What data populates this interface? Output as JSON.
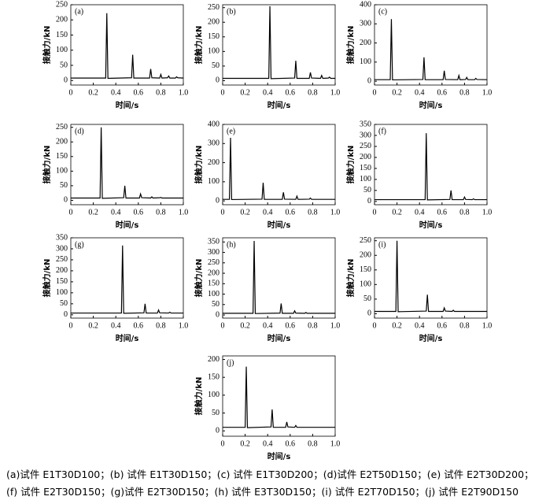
{
  "chart_data": [
    {
      "type": "line",
      "label": "(a)",
      "ylabel": "接触力/kN",
      "xlabel": "时间/s",
      "color": "#000000",
      "x": [
        0,
        0.31,
        0.32,
        0.33,
        0.54,
        0.55,
        0.56,
        0.7,
        0.71,
        0.72,
        0.79,
        0.8,
        0.81,
        0.86,
        0.87,
        0.88,
        0.93,
        0.94,
        0.95,
        1
      ],
      "values": [
        8,
        8,
        222,
        7,
        9,
        85,
        8,
        8,
        38,
        9,
        8,
        20,
        8,
        9,
        15,
        8,
        8,
        12,
        9,
        8
      ],
      "xlim": [
        0,
        1
      ],
      "ylim": [
        -15,
        250
      ],
      "xticks": [
        0,
        0.2,
        0.4,
        0.6,
        0.8,
        {
          "value": 1,
          "label": "1.0"
        }
      ],
      "yticks": [
        0,
        50,
        100,
        150,
        200,
        250
      ]
    },
    {
      "type": "line",
      "label": "(b)",
      "ylabel": "接触力/kN",
      "xlabel": "时间/s",
      "color": "#000000",
      "x": [
        0,
        0.41,
        0.42,
        0.43,
        0.64,
        0.65,
        0.66,
        0.77,
        0.78,
        0.79,
        0.87,
        0.88,
        0.89,
        0.94,
        0.95,
        0.96,
        1
      ],
      "values": [
        8,
        8,
        255,
        7,
        9,
        68,
        8,
        8,
        28,
        9,
        8,
        18,
        8,
        9,
        12,
        8,
        8
      ],
      "xlim": [
        0,
        1
      ],
      "ylim": [
        -15,
        260
      ],
      "xticks": [
        0,
        0.2,
        0.4,
        0.6,
        0.8,
        {
          "value": 1,
          "label": "1.0"
        }
      ],
      "yticks": [
        0,
        50,
        100,
        150,
        200,
        250
      ]
    },
    {
      "type": "line",
      "label": "(c)",
      "ylabel": "接触力/kN",
      "xlabel": "时间/s",
      "color": "#000000",
      "x": [
        0,
        0.14,
        0.15,
        0.16,
        0.43,
        0.44,
        0.45,
        0.61,
        0.62,
        0.63,
        0.74,
        0.75,
        0.76,
        0.81,
        0.82,
        0.83,
        0.89,
        0.9,
        0.91,
        1
      ],
      "values": [
        8,
        8,
        325,
        7,
        9,
        125,
        8,
        8,
        55,
        9,
        8,
        30,
        8,
        9,
        20,
        8,
        8,
        15,
        9,
        8
      ],
      "xlim": [
        0,
        1
      ],
      "ylim": [
        -20,
        400
      ],
      "xticks": [
        0,
        0.2,
        0.4,
        0.6,
        0.8,
        {
          "value": 1,
          "label": "1.0"
        }
      ],
      "yticks": [
        0,
        100,
        200,
        300,
        400
      ]
    },
    {
      "type": "line",
      "label": "(d)",
      "ylabel": "接触力/kN",
      "xlabel": "时间/s",
      "color": "#000000",
      "x": [
        0,
        0.26,
        0.27,
        0.28,
        0.47,
        0.48,
        0.49,
        0.61,
        0.62,
        0.63,
        0.71,
        0.72,
        0.73,
        0.79,
        0.8,
        0.81,
        1
      ],
      "values": [
        8,
        8,
        250,
        7,
        9,
        50,
        8,
        8,
        22,
        9,
        8,
        12,
        8,
        9,
        10,
        8,
        8
      ],
      "xlim": [
        0,
        1
      ],
      "ylim": [
        -15,
        260
      ],
      "xticks": [
        0,
        0.2,
        0.4,
        0.6,
        0.8,
        {
          "value": 1,
          "label": "1.0"
        }
      ],
      "yticks": [
        0,
        50,
        100,
        150,
        200,
        250
      ]
    },
    {
      "type": "line",
      "label": "(e)",
      "ylabel": "接触力/kN",
      "xlabel": "时间/s",
      "color": "#000000",
      "x": [
        0,
        0.06,
        0.07,
        0.08,
        0.35,
        0.36,
        0.37,
        0.53,
        0.54,
        0.55,
        0.65,
        0.66,
        0.67,
        0.77,
        0.78,
        0.79,
        1
      ],
      "values": [
        8,
        8,
        330,
        7,
        9,
        95,
        8,
        8,
        45,
        9,
        8,
        25,
        8,
        9,
        15,
        8,
        8
      ],
      "xlim": [
        0,
        1
      ],
      "ylim": [
        -20,
        400
      ],
      "xticks": [
        0,
        0.2,
        0.4,
        0.6,
        0.8,
        {
          "value": 1,
          "label": "1.0"
        }
      ],
      "yticks": [
        0,
        100,
        200,
        300,
        400
      ]
    },
    {
      "type": "line",
      "label": "(f)",
      "ylabel": "接触力/kN",
      "xlabel": "时间/s",
      "color": "#000000",
      "x": [
        0,
        0.45,
        0.46,
        0.47,
        0.67,
        0.68,
        0.69,
        0.79,
        0.8,
        0.81,
        0.87,
        0.88,
        0.89,
        1
      ],
      "values": [
        8,
        8,
        310,
        7,
        9,
        50,
        8,
        8,
        20,
        9,
        8,
        12,
        8,
        8
      ],
      "xlim": [
        0,
        1
      ],
      "ylim": [
        -15,
        350
      ],
      "xticks": [
        0,
        0.2,
        0.4,
        0.6,
        0.8,
        {
          "value": 1,
          "label": "1.0"
        }
      ],
      "yticks": [
        0,
        50,
        100,
        150,
        200,
        250,
        300,
        350
      ]
    },
    {
      "type": "line",
      "label": "(g)",
      "ylabel": "接触力/kN",
      "xlabel": "时间/s",
      "color": "#000000",
      "x": [
        0,
        0.45,
        0.46,
        0.47,
        0.65,
        0.66,
        0.67,
        0.77,
        0.78,
        0.79,
        0.87,
        0.88,
        0.89,
        1
      ],
      "values": [
        8,
        8,
        315,
        7,
        9,
        50,
        8,
        8,
        22,
        9,
        8,
        12,
        8,
        8
      ],
      "xlim": [
        0,
        1
      ],
      "ylim": [
        -15,
        350
      ],
      "xticks": [
        0,
        0.2,
        0.4,
        0.6,
        0.8,
        {
          "value": 1,
          "label": "1.0"
        }
      ],
      "yticks": [
        0,
        50,
        100,
        150,
        200,
        250,
        300,
        350
      ]
    },
    {
      "type": "line",
      "label": "(h)",
      "ylabel": "接触力/kN",
      "xlabel": "时间/s",
      "color": "#000000",
      "x": [
        0,
        0.27,
        0.28,
        0.29,
        0.51,
        0.52,
        0.53,
        0.63,
        0.64,
        0.65,
        0.73,
        0.74,
        0.75,
        1
      ],
      "values": [
        8,
        8,
        355,
        7,
        9,
        55,
        8,
        8,
        20,
        9,
        8,
        12,
        8,
        8
      ],
      "xlim": [
        0,
        1
      ],
      "ylim": [
        -15,
        370
      ],
      "xticks": [
        0,
        0.2,
        0.4,
        0.6,
        0.8,
        {
          "value": 1,
          "label": "1.0"
        }
      ],
      "yticks": [
        0,
        50,
        100,
        150,
        200,
        250,
        300,
        350
      ]
    },
    {
      "type": "line",
      "label": "(i)",
      "ylabel": "接触力/kN",
      "xlabel": "时间/s",
      "color": "#000000",
      "x": [
        0,
        0.19,
        0.2,
        0.21,
        0.46,
        0.47,
        0.48,
        0.61,
        0.62,
        0.63,
        0.69,
        0.7,
        0.71,
        1
      ],
      "values": [
        8,
        8,
        250,
        7,
        9,
        65,
        8,
        8,
        20,
        9,
        8,
        12,
        8,
        8
      ],
      "xlim": [
        0,
        1
      ],
      "ylim": [
        -15,
        260
      ],
      "xticks": [
        0,
        0.2,
        0.4,
        0.6,
        0.8,
        {
          "value": 1,
          "label": "1.0"
        }
      ],
      "yticks": [
        0,
        50,
        100,
        150,
        200,
        250
      ]
    },
    {
      "type": "line",
      "label": "(j)",
      "ylabel": "接触力/kN",
      "xlabel": "时间/s",
      "color": "#000000",
      "x": [
        0,
        0.2,
        0.21,
        0.22,
        0.43,
        0.44,
        0.45,
        0.56,
        0.57,
        0.58,
        0.64,
        0.65,
        0.66,
        1
      ],
      "values": [
        10,
        10,
        180,
        9,
        11,
        60,
        10,
        10,
        25,
        11,
        10,
        15,
        10,
        10
      ],
      "xlim": [
        0,
        1
      ],
      "ylim": [
        -15,
        210
      ],
      "xticks": [
        0,
        0.2,
        0.4,
        0.6,
        0.8,
        {
          "value": 1,
          "label": "1.0"
        }
      ],
      "yticks": [
        0,
        50,
        100,
        150,
        200
      ]
    }
  ],
  "caption": [
    "(a)试件 E1T30D100；(b) 试件 E1T30D150；(c) 试件 E1T30D200；(d)试件 E2T50D150；(e) 试件 E2T30D200；",
    "(f) 试件 E2T30D150；(g)试件 E2T30D150；(h) 试件 E3T30D150；(i) 试件 E2T70D150；(j) 试件 E2T90D150"
  ]
}
